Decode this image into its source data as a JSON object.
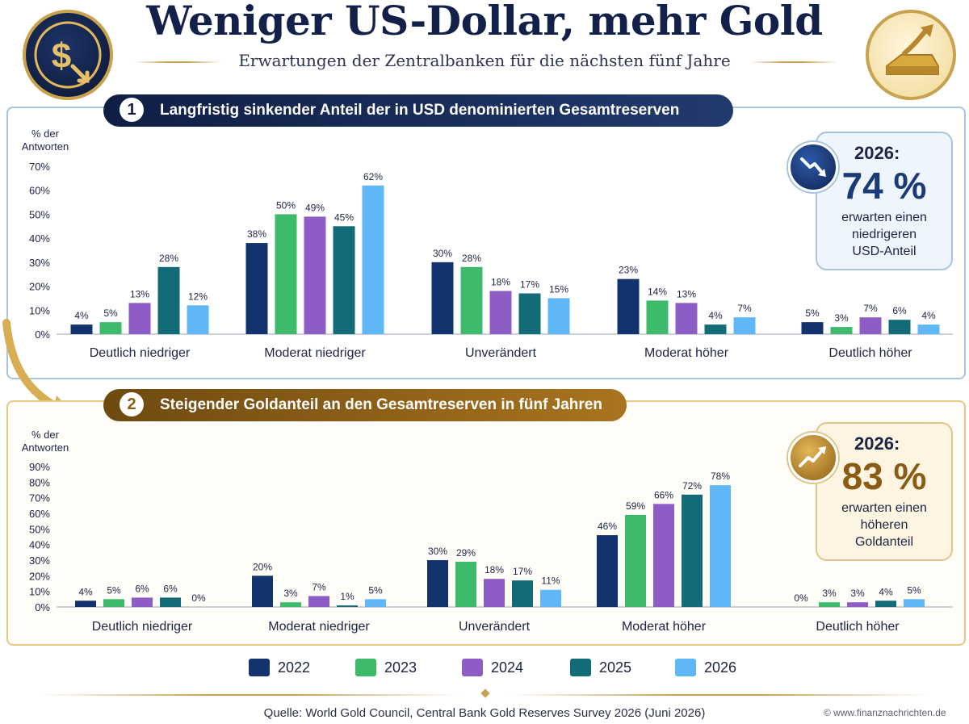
{
  "header": {
    "title": "Weniger US-Dollar, mehr Gold",
    "subtitle": "Erwartungen der Zentralbanken für die nächsten fünf Jahre"
  },
  "colors": {
    "2022": "#13336e",
    "2023": "#3dbb6b",
    "2024": "#8d5cc4",
    "2025": "#146b78",
    "2026": "#5fb8f5",
    "navy": "#13214a",
    "gold": "#a9741f"
  },
  "icons": {
    "logo_left": "dollar-down-coin-icon",
    "logo_right": "gold-bar-up-icon",
    "badge1": "trend-down-icon",
    "badge2": "trend-up-icon"
  },
  "section1": {
    "number": "1",
    "title": "Langfristig sinkender Anteil der in USD denominierten Gesamtreserven",
    "callout": {
      "year": "2026:",
      "value": "74 %",
      "text_line1": "erwarten einen",
      "text_line2": "niedrigeren",
      "text_line3": "USD-Anteil"
    }
  },
  "section2": {
    "number": "2",
    "title": "Steigender Goldanteil an den Gesamtreserven in fünf Jahren",
    "callout": {
      "year": "2026:",
      "value": "83 %",
      "text_line1": "erwarten einen",
      "text_line2": "höheren",
      "text_line3": "Goldanteil"
    }
  },
  "legend": [
    "2022",
    "2023",
    "2024",
    "2025",
    "2026"
  ],
  "footer": {
    "source": "Quelle: World Gold Council, Central Bank Gold Reserves Survey 2026 (Juni 2026)",
    "credit": "© www.finanznachrichten.de"
  },
  "chart_data": [
    {
      "type": "bar",
      "title": "Langfristig sinkender Anteil der in USD denominierten Gesamtreserven",
      "ylabel": "% der Antworten",
      "ylim": [
        0,
        70
      ],
      "yticks": [
        "0%",
        "10%",
        "20%",
        "30%",
        "40%",
        "50%",
        "60%",
        "70%"
      ],
      "grid": false,
      "legend": "bottom",
      "categories": [
        "Deutlich niedriger",
        "Moderat niedriger",
        "Unverändert",
        "Moderat höher",
        "Deutlich höher"
      ],
      "series": [
        {
          "name": "2022",
          "values": [
            4,
            38,
            30,
            23,
            5
          ]
        },
        {
          "name": "2023",
          "values": [
            5,
            50,
            28,
            14,
            3
          ]
        },
        {
          "name": "2024",
          "values": [
            13,
            49,
            18,
            13,
            7
          ]
        },
        {
          "name": "2025",
          "values": [
            28,
            45,
            17,
            4,
            6
          ]
        },
        {
          "name": "2026",
          "values": [
            12,
            62,
            15,
            7,
            4
          ]
        }
      ]
    },
    {
      "type": "bar",
      "title": "Steigender Goldanteil an den Gesamtreserven in fünf Jahren",
      "ylabel": "% der Antworten",
      "ylim": [
        0,
        90
      ],
      "yticks": [
        "0%",
        "10%",
        "20%",
        "30%",
        "40%",
        "50%",
        "60%",
        "70%",
        "80%",
        "90%"
      ],
      "grid": false,
      "legend": "bottom",
      "categories": [
        "Deutlich niedriger",
        "Moderat niedriger",
        "Unverändert",
        "Moderat höher",
        "Deutlich höher"
      ],
      "series": [
        {
          "name": "2022",
          "values": [
            4,
            20,
            30,
            46,
            0
          ]
        },
        {
          "name": "2023",
          "values": [
            5,
            3,
            29,
            59,
            3
          ]
        },
        {
          "name": "2024",
          "values": [
            6,
            7,
            18,
            66,
            3
          ]
        },
        {
          "name": "2025",
          "values": [
            6,
            1,
            17,
            72,
            4
          ]
        },
        {
          "name": "2026",
          "values": [
            0,
            5,
            11,
            78,
            5
          ]
        }
      ]
    }
  ]
}
